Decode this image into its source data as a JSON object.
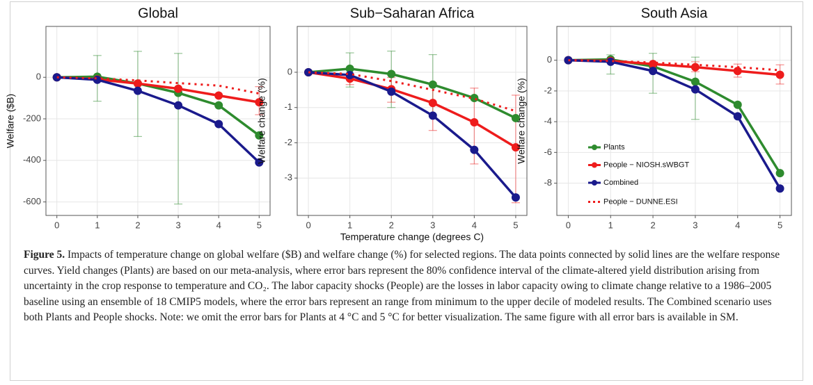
{
  "chart_data": [
    {
      "type": "line",
      "title": "Global",
      "ylabel": "Welfare ($B)",
      "x": [
        0,
        1,
        2,
        3,
        4,
        5
      ],
      "xlim": [
        -0.27,
        5.27
      ],
      "xticks": [
        0,
        1,
        2,
        3,
        4,
        5
      ],
      "ylim": [
        -665,
        245
      ],
      "yticks": [
        0,
        -200,
        -400,
        -600
      ],
      "grid": true,
      "series": [
        {
          "color": "#2e8b2e",
          "values": [
            0,
            3,
            -30,
            -75,
            -135,
            -280
          ],
          "error_low": [
            null,
            -115,
            -285,
            -610,
            null,
            null
          ],
          "error_high": [
            null,
            105,
            125,
            115,
            null,
            null
          ]
        },
        {
          "color": "#ee1c1c",
          "values": [
            0,
            -10,
            -30,
            -55,
            -88,
            -120
          ],
          "error_low": [
            null,
            null,
            null,
            null,
            null,
            -180
          ],
          "error_high": [
            null,
            null,
            null,
            null,
            null,
            -45
          ]
        },
        {
          "color": "#1a1a8c",
          "values": [
            0,
            -12,
            -65,
            -135,
            -225,
            -410
          ]
        },
        {
          "color": "#ee1c1c",
          "dashed": true,
          "values": [
            0,
            -5,
            -15,
            -28,
            -40,
            -78
          ]
        }
      ]
    },
    {
      "type": "line",
      "title": "Sub−Saharan Africa",
      "ylabel": "Welfare change (%)",
      "xlabel": "Temperature change (degrees C)",
      "x": [
        0,
        1,
        2,
        3,
        4,
        5
      ],
      "xlim": [
        -0.27,
        5.27
      ],
      "xticks": [
        0,
        1,
        2,
        3,
        4,
        5
      ],
      "ylim": [
        -4.06,
        1.3
      ],
      "yticks": [
        0,
        -1,
        -2,
        -3
      ],
      "grid": true,
      "series": [
        {
          "color": "#2e8b2e",
          "values": [
            0,
            0.1,
            -0.05,
            -0.35,
            -0.73,
            -1.3
          ],
          "error_low": [
            null,
            -0.42,
            -1.0,
            -1.2,
            null,
            null
          ],
          "error_high": [
            null,
            0.55,
            0.6,
            0.5,
            null,
            null
          ]
        },
        {
          "color": "#ee1c1c",
          "values": [
            0,
            -0.18,
            -0.48,
            -0.87,
            -1.42,
            -2.13
          ],
          "error_low": [
            null,
            -0.35,
            -0.85,
            -1.65,
            -2.6,
            -3.7
          ],
          "error_high": [
            null,
            -0.05,
            -0.15,
            -0.3,
            -0.45,
            -0.65
          ]
        },
        {
          "color": "#1a1a8c",
          "values": [
            0,
            -0.08,
            -0.55,
            -1.23,
            -2.2,
            -3.55
          ]
        },
        {
          "color": "#ee1c1c",
          "dashed": true,
          "values": [
            0,
            -0.05,
            -0.25,
            -0.5,
            -0.75,
            -1.1
          ]
        }
      ]
    },
    {
      "type": "line",
      "title": "South Asia",
      "ylabel": "Welfare change (%)",
      "x": [
        0,
        1,
        2,
        3,
        4,
        5
      ],
      "xlim": [
        -0.27,
        5.27
      ],
      "xticks": [
        0,
        1,
        2,
        3,
        4,
        5
      ],
      "ylim": [
        -10.1,
        2.2
      ],
      "yticks": [
        0,
        -2,
        -4,
        -6,
        -8
      ],
      "grid": true,
      "legend": "bottom-left",
      "series": [
        {
          "name": "Plants",
          "color": "#2e8b2e",
          "values": [
            0,
            0.05,
            -0.4,
            -1.4,
            -2.9,
            -7.35
          ],
          "error_low": [
            null,
            -0.9,
            -2.15,
            -3.85,
            null,
            null
          ],
          "error_high": [
            null,
            0.35,
            0.45,
            0.2,
            null,
            null
          ]
        },
        {
          "name": "People − NIOSH.sWBGT",
          "color": "#ee1c1c",
          "values": [
            0,
            -0.05,
            -0.25,
            -0.45,
            -0.7,
            -0.95
          ],
          "error_low": [
            null,
            null,
            null,
            -0.75,
            -1.1,
            -1.55
          ],
          "error_high": [
            null,
            null,
            null,
            -0.1,
            -0.25,
            -0.3
          ]
        },
        {
          "name": "Combined",
          "color": "#1a1a8c",
          "values": [
            0,
            -0.1,
            -0.7,
            -1.9,
            -3.65,
            -8.35
          ]
        },
        {
          "name": "People − DUNNE.ESI",
          "color": "#ee1c1c",
          "dashed": true,
          "values": [
            0,
            -0.05,
            -0.15,
            -0.3,
            -0.45,
            -0.65
          ]
        }
      ]
    }
  ],
  "caption": {
    "label": "Figure 5.",
    "text": "Impacts of temperature change on global welfare ($B) and welfare change (%) for selected regions. The data points connected by solid lines are the welfare response curves. Yield changes (Plants) are based on our meta-analysis, where error bars represent the 80% confidence interval of the climate-altered yield distribution arising from uncertainty in the crop response to temperature and CO₂. The labor capacity shocks (People) are the losses in labor capacity owing to climate change relative to a 1986–2005 baseline using an ensemble of 18 CMIP5 models, where the error bars represent an range from minimum to the upper decile of modeled results. The Combined scenario uses both Plants and People shocks. Note: we omit the error bars for Plants at 4 °C and 5 °C for better visualization. The same figure with all error bars is available in SM."
  }
}
